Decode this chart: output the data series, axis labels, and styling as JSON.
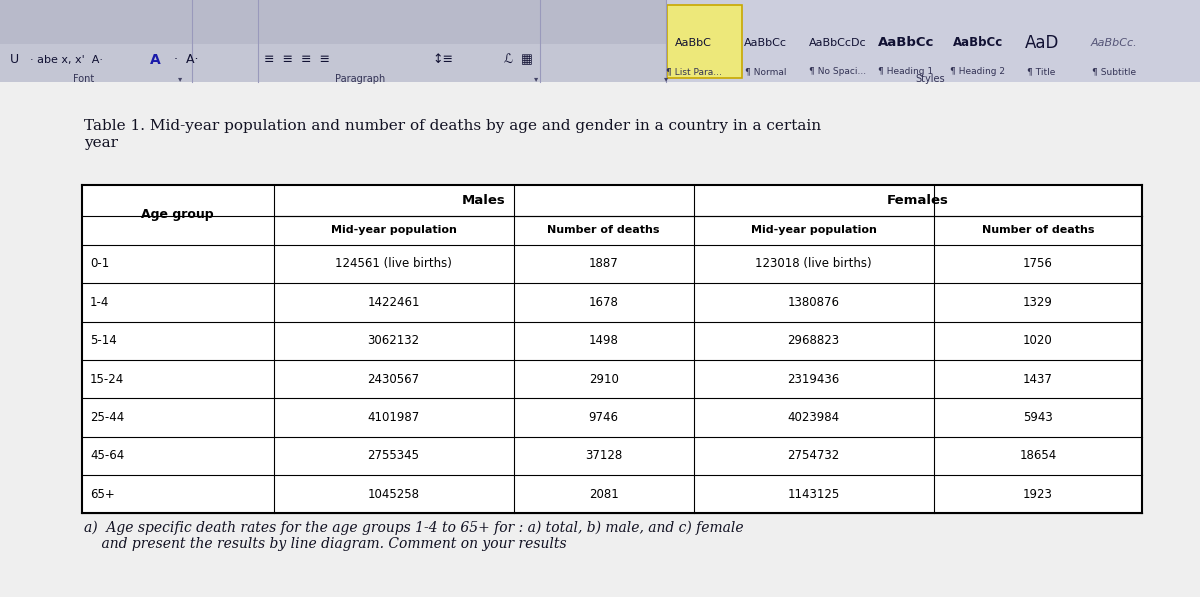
{
  "page_bg": "#e8e8e8",
  "toolbar_bg": "#c0c2d0",
  "styles_bg": "#d0d2e0",
  "content_bg": "#f0f0f0",
  "title_text": "Table 1. Mid-year population and number of deaths by age and gender in a country in a certain\nyear",
  "footer_text": "a)  Age specific death rates for the age groups 1-4 to 65+ for : a) total, b) male, and c) female\n    and present the results by line diagram. Comment on your results",
  "ribbon_items": [
    "List Para...",
    "Normal",
    "No Spaci...",
    "Heading 1",
    "Heading 2",
    "Title",
    "Subtitle"
  ],
  "style_samples": [
    "AaBbC",
    "AaBbCc",
    "AaBbCcDc",
    "AaBbCc",
    "AaBbCc",
    "AaD",
    "AaBbCc."
  ],
  "age_groups": [
    "0-1",
    "1-4",
    "5-14",
    "15-24",
    "25-44",
    "45-64",
    "65+"
  ],
  "male_population": [
    "124561 (live births)",
    "1422461",
    "3062132",
    "2430567",
    "4101987",
    "2755345",
    "1045258"
  ],
  "male_deaths": [
    "1887",
    "1678",
    "1498",
    "2910",
    "9746",
    "37128",
    "2081"
  ],
  "female_population": [
    "123018 (live births)",
    "1380876",
    "2968823",
    "2319436",
    "4023984",
    "2754732",
    "1143125"
  ],
  "female_deaths": [
    "1756",
    "1329",
    "1020",
    "1437",
    "5943",
    "18654",
    "1923"
  ]
}
